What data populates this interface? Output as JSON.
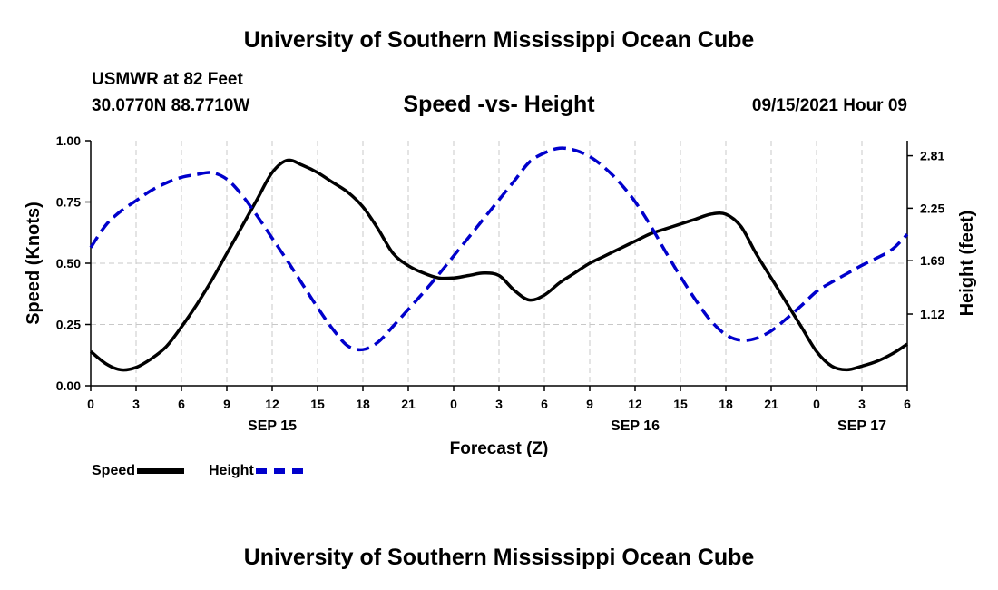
{
  "header": {
    "title": "University of Southern Mississippi Ocean Cube",
    "station": "USMWR at 82 Feet",
    "coords": "30.0770N  88.7710W",
    "subtitle": "Speed -vs- Height",
    "datetime": "09/15/2021 Hour 09"
  },
  "footer": {
    "title": "University of Southern Mississippi Ocean Cube"
  },
  "legend": {
    "speed_label": "Speed",
    "height_label": "Height"
  },
  "chart_data": {
    "type": "line",
    "title": "Speed -vs- Height",
    "xlabel": "Forecast (Z)",
    "ylabel": "Speed (Knots)",
    "y2label": "Height (feet)",
    "x_range_hours": [
      0,
      54
    ],
    "x_ticks": [
      {
        "h": 0,
        "label": "0"
      },
      {
        "h": 3,
        "label": "3"
      },
      {
        "h": 6,
        "label": "6"
      },
      {
        "h": 9,
        "label": "9"
      },
      {
        "h": 12,
        "label": "12"
      },
      {
        "h": 15,
        "label": "15"
      },
      {
        "h": 18,
        "label": "18"
      },
      {
        "h": 21,
        "label": "21"
      },
      {
        "h": 24,
        "label": "0"
      },
      {
        "h": 27,
        "label": "3"
      },
      {
        "h": 30,
        "label": "6"
      },
      {
        "h": 33,
        "label": "9"
      },
      {
        "h": 36,
        "label": "12"
      },
      {
        "h": 39,
        "label": "15"
      },
      {
        "h": 42,
        "label": "18"
      },
      {
        "h": 45,
        "label": "21"
      },
      {
        "h": 48,
        "label": "0"
      },
      {
        "h": 51,
        "label": "3"
      },
      {
        "h": 54,
        "label": "6"
      }
    ],
    "day_labels": [
      {
        "h": 12,
        "label": "SEP 15"
      },
      {
        "h": 36,
        "label": "SEP 16"
      },
      {
        "h": 51,
        "label": "SEP 17"
      }
    ],
    "y_range": [
      0,
      1
    ],
    "y_ticks": [
      "0.00",
      "0.25",
      "0.50",
      "0.75",
      "1.00"
    ],
    "y2_range": [
      0.3547,
      2.9707
    ],
    "y2_ticks": [
      1.12,
      1.69,
      2.25,
      2.81
    ],
    "grid": true,
    "legend_position": "bottom-left",
    "series": [
      {
        "name": "Speed",
        "axis": "left",
        "color": "#000000",
        "style": "solid",
        "x": [
          0,
          1,
          2,
          3,
          4,
          5,
          6,
          7,
          8,
          9,
          10,
          11,
          12,
          13,
          14,
          15,
          16,
          17,
          18,
          19,
          20,
          21,
          22,
          23,
          24,
          25,
          26,
          27,
          28,
          29,
          30,
          31,
          32,
          33,
          34,
          35,
          36,
          37,
          38,
          39,
          40,
          41,
          42,
          43,
          44,
          45,
          46,
          47,
          48,
          49,
          50,
          51,
          52,
          53,
          54
        ],
        "values": [
          0.14,
          0.09,
          0.065,
          0.075,
          0.11,
          0.16,
          0.24,
          0.33,
          0.43,
          0.54,
          0.65,
          0.76,
          0.87,
          0.92,
          0.9,
          0.87,
          0.83,
          0.79,
          0.73,
          0.64,
          0.54,
          0.49,
          0.46,
          0.44,
          0.44,
          0.45,
          0.46,
          0.45,
          0.39,
          0.35,
          0.37,
          0.42,
          0.46,
          0.5,
          0.53,
          0.56,
          0.59,
          0.62,
          0.64,
          0.66,
          0.68,
          0.7,
          0.7,
          0.65,
          0.54,
          0.44,
          0.34,
          0.24,
          0.14,
          0.08,
          0.065,
          0.08,
          0.1,
          0.13,
          0.17
        ]
      },
      {
        "name": "Height",
        "axis": "right",
        "color": "#0000cc",
        "style": "dashed",
        "x": [
          0,
          1,
          2,
          3,
          4,
          5,
          6,
          7,
          8,
          9,
          10,
          11,
          12,
          13,
          14,
          15,
          16,
          17,
          18,
          19,
          20,
          21,
          22,
          23,
          24,
          25,
          26,
          27,
          28,
          29,
          30,
          31,
          32,
          33,
          34,
          35,
          36,
          37,
          38,
          39,
          40,
          41,
          42,
          43,
          44,
          45,
          46,
          47,
          48,
          49,
          50,
          51,
          52,
          53,
          54
        ],
        "values": [
          1.83,
          2.07,
          2.22,
          2.33,
          2.44,
          2.52,
          2.58,
          2.61,
          2.63,
          2.56,
          2.39,
          2.17,
          1.93,
          1.69,
          1.44,
          1.19,
          0.96,
          0.78,
          0.74,
          0.82,
          0.99,
          1.17,
          1.35,
          1.54,
          1.74,
          1.94,
          2.14,
          2.34,
          2.54,
          2.74,
          2.84,
          2.89,
          2.87,
          2.8,
          2.68,
          2.52,
          2.32,
          2.07,
          1.79,
          1.52,
          1.27,
          1.05,
          0.9,
          0.84,
          0.86,
          0.94,
          1.07,
          1.21,
          1.36,
          1.46,
          1.55,
          1.64,
          1.72,
          1.81,
          1.97
        ]
      }
    ]
  }
}
